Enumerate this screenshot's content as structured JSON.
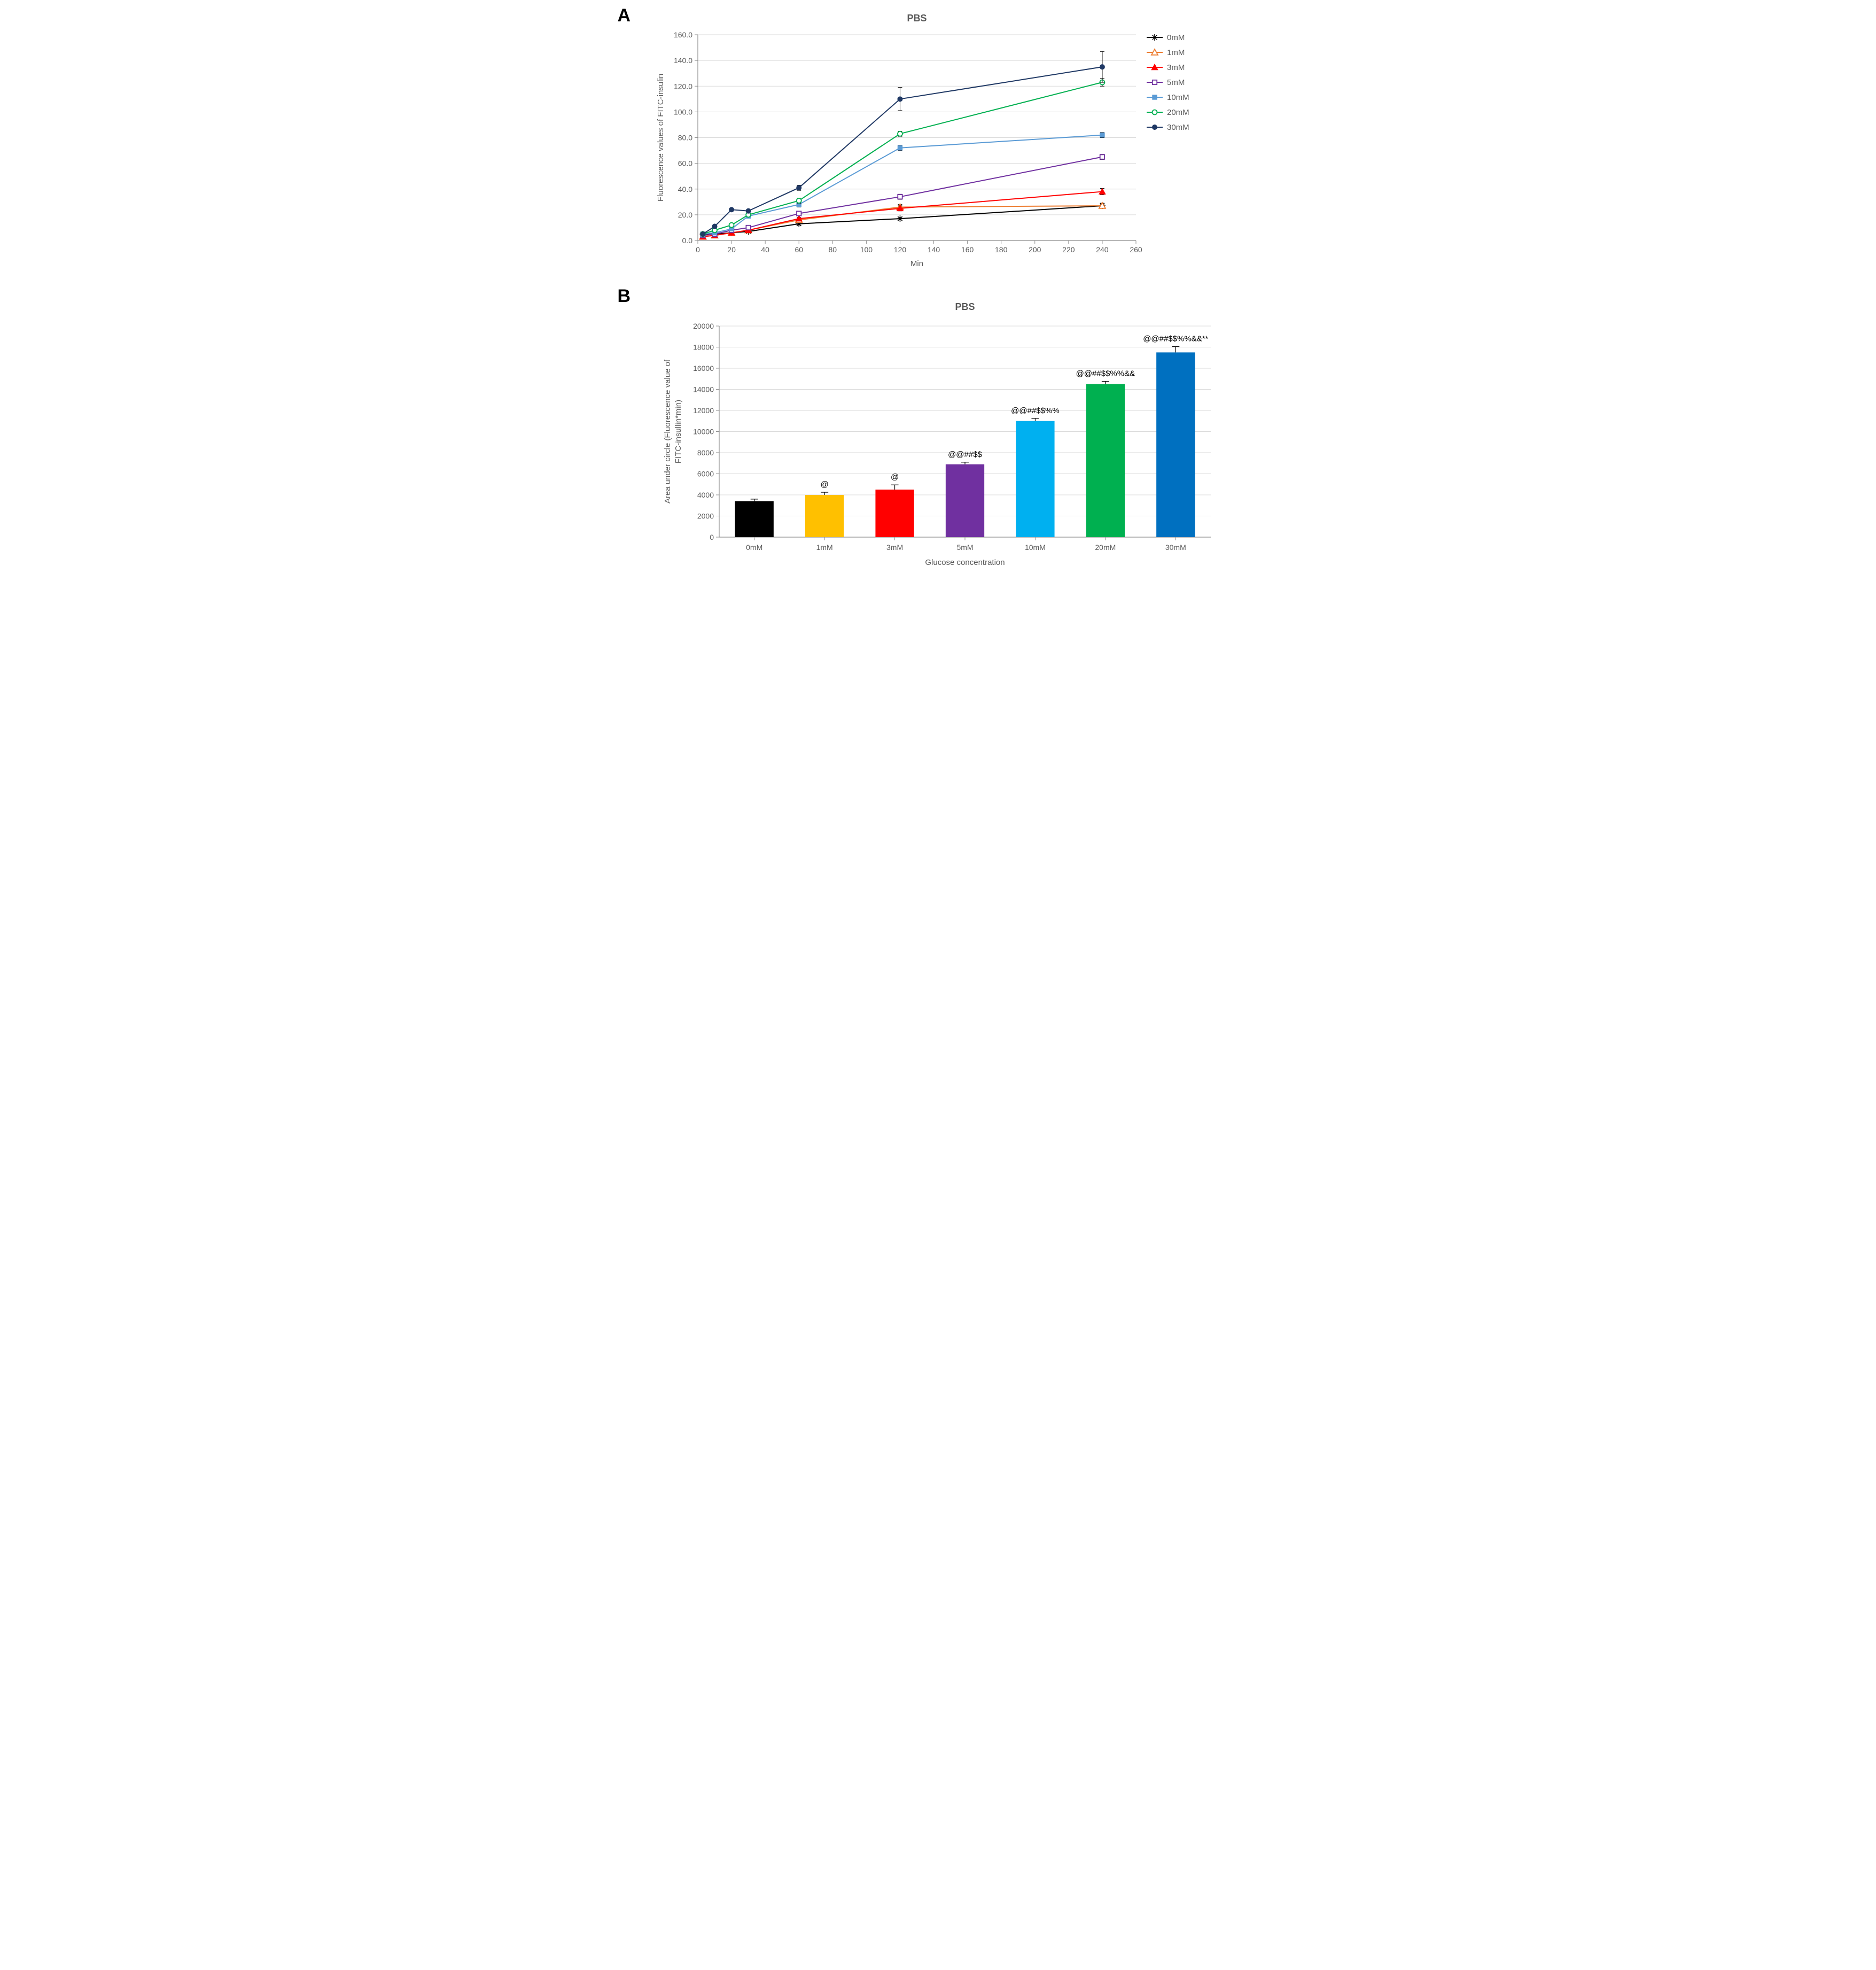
{
  "panelA": {
    "label": "A",
    "title": "PBS",
    "type": "line",
    "xlabel": "Min",
    "ylabel": "Fluorescence values of FITC-insulin",
    "xlim": [
      0,
      260
    ],
    "ylim": [
      0,
      160
    ],
    "xtick_step": 20,
    "ytick_step": 20,
    "xticks": [
      0,
      20,
      40,
      60,
      80,
      100,
      120,
      140,
      160,
      180,
      200,
      220,
      240,
      260
    ],
    "yticks": [
      0,
      20,
      40,
      60,
      80,
      100,
      120,
      140,
      160
    ],
    "yticklabels": [
      "0.0",
      "20.0",
      "40.0",
      "60.0",
      "80.0",
      "100.0",
      "120.0",
      "140.0",
      "160.0"
    ],
    "background_color": "#ffffff",
    "grid_color": "#d9d9d9",
    "axis_fontsize": 15,
    "tick_fontsize": 14,
    "title_fontsize": 18,
    "title_color": "#595959",
    "x_values": [
      3,
      10,
      20,
      30,
      60,
      120,
      240
    ],
    "series": [
      {
        "name": "0mM",
        "color": "#000000",
        "marker": "asterisk",
        "values": [
          5,
          5,
          6,
          7,
          13,
          17,
          27
        ],
        "err": [
          1,
          1,
          1,
          1,
          1,
          1,
          2
        ]
      },
      {
        "name": "1mM",
        "color": "#ed7d31",
        "marker": "triangle-open",
        "values": [
          3,
          4,
          6,
          8,
          16,
          26,
          27
        ],
        "err": [
          1,
          1,
          1,
          1,
          1,
          2,
          2
        ]
      },
      {
        "name": "3mM",
        "color": "#ff0000",
        "marker": "triangle-solid",
        "values": [
          3,
          4,
          6,
          8,
          17,
          25,
          38
        ],
        "err": [
          1,
          1,
          1,
          1,
          1,
          2,
          2.5
        ]
      },
      {
        "name": "5mM",
        "color": "#7030a0",
        "marker": "square-open",
        "values": [
          4,
          5,
          8,
          10,
          21,
          34,
          65
        ],
        "err": [
          1,
          1,
          1,
          1,
          1,
          2,
          2
        ]
      },
      {
        "name": "10mM",
        "color": "#5b9bd5",
        "marker": "square-solid",
        "values": [
          5,
          6,
          9,
          19,
          28,
          72,
          82
        ],
        "err": [
          1,
          1,
          1,
          1,
          2,
          2,
          2
        ]
      },
      {
        "name": "20mM",
        "color": "#00b050",
        "marker": "circle-open",
        "values": [
          5,
          8,
          12,
          20,
          31,
          83,
          123
        ],
        "err": [
          1,
          1,
          1,
          1,
          2,
          2,
          3
        ]
      },
      {
        "name": "30mM",
        "color": "#1f3864",
        "marker": "circle-solid",
        "values": [
          5,
          11,
          24,
          23,
          41,
          110,
          135
        ],
        "err": [
          1,
          1,
          1,
          1,
          2,
          9,
          12
        ]
      }
    ],
    "line_width": 2,
    "marker_size": 6
  },
  "panelB": {
    "label": "B",
    "title": "PBS",
    "type": "bar",
    "xlabel": "Glucose concentration",
    "ylabel": "Area under circle (Fluorescence value of FITC-insullin*min)",
    "categories": [
      "0mM",
      "1mM",
      "3mM",
      "5mM",
      "10mM",
      "20mM",
      "30mM"
    ],
    "values": [
      3400,
      4000,
      4500,
      6900,
      11000,
      14500,
      17500
    ],
    "errors": [
      200,
      250,
      450,
      200,
      250,
      250,
      550
    ],
    "bar_colors": [
      "#000000",
      "#ffc000",
      "#ff0000",
      "#7030a0",
      "#00b0f0",
      "#00b050",
      "#0070c0"
    ],
    "annotations": [
      "",
      "@",
      "@",
      "@@##$$",
      "@@##$$%%",
      "@@##$$%%&&",
      "@@##$$%%&&**"
    ],
    "ylim": [
      0,
      20000
    ],
    "ytick_step": 2000,
    "yticks": [
      0,
      2000,
      4000,
      6000,
      8000,
      10000,
      12000,
      14000,
      16000,
      18000,
      20000
    ],
    "background_color": "#ffffff",
    "grid_color": "#d9d9d9",
    "axis_fontsize": 15,
    "tick_fontsize": 14,
    "title_fontsize": 18,
    "title_color": "#595959",
    "bar_width": 0.55
  }
}
